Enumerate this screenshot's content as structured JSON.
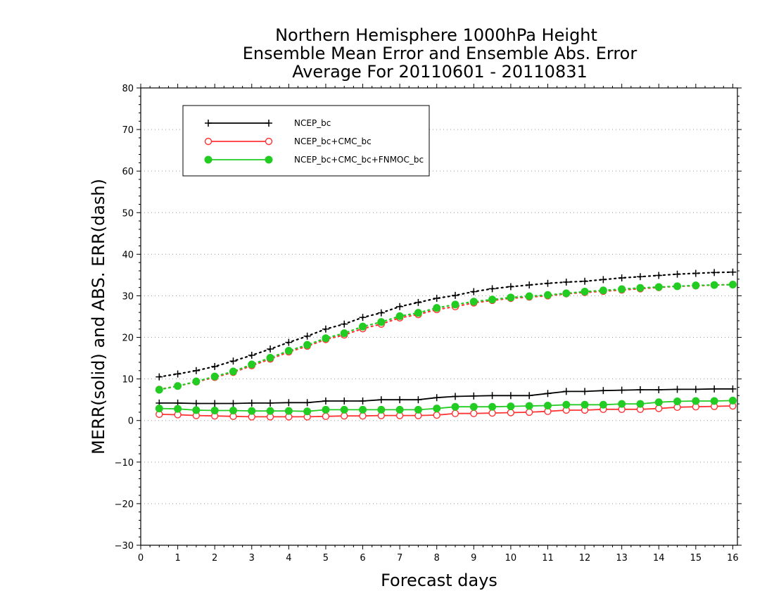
{
  "chart_data": {
    "type": "line",
    "title_lines": [
      "Northern Hemisphere 1000hPa Height",
      "Ensemble Mean Error and Ensemble Abs. Error",
      "Average For 20110601 - 20110831"
    ],
    "xlabel": "Forecast days",
    "ylabel": "MERR(solid) and ABS. ERR(dash)",
    "xlim": [
      0,
      16.125
    ],
    "ylim": [
      -30,
      80
    ],
    "x_ticks": [
      0,
      1,
      2,
      3,
      4,
      5,
      6,
      7,
      8,
      9,
      10,
      11,
      12,
      13,
      14,
      15,
      16
    ],
    "y_ticks": [
      -30,
      -20,
      -10,
      0,
      10,
      20,
      30,
      40,
      50,
      60,
      70,
      80
    ],
    "grid": "horizontal-dotted",
    "legend_position": "top-left",
    "x": [
      0.5,
      1.0,
      1.5,
      2.0,
      2.5,
      3.0,
      3.5,
      4.0,
      4.5,
      5.0,
      5.5,
      6.0,
      6.5,
      7.0,
      7.5,
      8.0,
      8.5,
      9.0,
      9.5,
      10.0,
      10.5,
      11.0,
      11.5,
      12.0,
      12.5,
      13.0,
      13.5,
      14.0,
      14.5,
      15.0,
      15.5,
      16.0
    ],
    "series": [
      {
        "name": "NCEP_bc",
        "color": "#000000",
        "marker": "plus",
        "merr": [
          4.2,
          4.2,
          4.1,
          4.1,
          4.1,
          4.2,
          4.2,
          4.3,
          4.3,
          4.7,
          4.7,
          4.7,
          5.0,
          5.0,
          5.0,
          5.5,
          5.8,
          5.9,
          6.0,
          6.0,
          6.0,
          6.5,
          7.0,
          7.0,
          7.2,
          7.3,
          7.4,
          7.4,
          7.5,
          7.5,
          7.6,
          7.6
        ],
        "abs_err": [
          10.5,
          11.2,
          12.0,
          13.0,
          14.3,
          15.7,
          17.2,
          18.8,
          20.3,
          22.0,
          23.2,
          24.8,
          25.9,
          27.4,
          28.4,
          29.4,
          30.1,
          31.0,
          31.7,
          32.2,
          32.6,
          33.0,
          33.3,
          33.5,
          33.9,
          34.3,
          34.6,
          34.9,
          35.2,
          35.4,
          35.6,
          35.7
        ]
      },
      {
        "name": "NCEP_bc+CMC_bc",
        "color": "#ff3333",
        "marker": "open-circle",
        "merr": [
          1.5,
          1.4,
          1.2,
          1.1,
          1.0,
          0.9,
          0.9,
          0.9,
          0.9,
          1.0,
          1.1,
          1.1,
          1.2,
          1.2,
          1.2,
          1.3,
          1.7,
          1.7,
          1.8,
          1.9,
          2.0,
          2.2,
          2.5,
          2.5,
          2.7,
          2.7,
          2.7,
          2.9,
          3.2,
          3.3,
          3.4,
          3.5
        ],
        "abs_err": [
          7.5,
          8.3,
          9.3,
          10.4,
          11.6,
          13.2,
          14.8,
          16.5,
          17.9,
          19.5,
          20.6,
          22.1,
          23.2,
          24.7,
          25.5,
          26.7,
          27.4,
          28.3,
          28.9,
          29.4,
          29.7,
          30.0,
          30.5,
          30.8,
          31.1,
          31.4,
          31.7,
          32.0,
          32.3,
          32.4,
          32.6,
          32.7
        ]
      },
      {
        "name": "NCEP_bc+CMC_bc+FNMOC_bc",
        "color": "#22cc22",
        "marker": "filled-circle",
        "merr": [
          2.9,
          2.8,
          2.5,
          2.4,
          2.4,
          2.3,
          2.3,
          2.3,
          2.2,
          2.6,
          2.6,
          2.6,
          2.6,
          2.6,
          2.6,
          2.9,
          3.3,
          3.3,
          3.3,
          3.4,
          3.5,
          3.6,
          3.8,
          3.8,
          3.8,
          4.0,
          4.0,
          4.4,
          4.6,
          4.7,
          4.7,
          4.8
        ],
        "abs_err": [
          7.4,
          8.3,
          9.4,
          10.6,
          11.8,
          13.5,
          15.1,
          16.8,
          18.2,
          19.8,
          21.0,
          22.6,
          23.7,
          25.1,
          25.9,
          27.1,
          27.9,
          28.6,
          29.1,
          29.6,
          29.9,
          30.2,
          30.6,
          31.0,
          31.3,
          31.6,
          31.9,
          32.1,
          32.3,
          32.5,
          32.6,
          32.7
        ]
      }
    ]
  }
}
